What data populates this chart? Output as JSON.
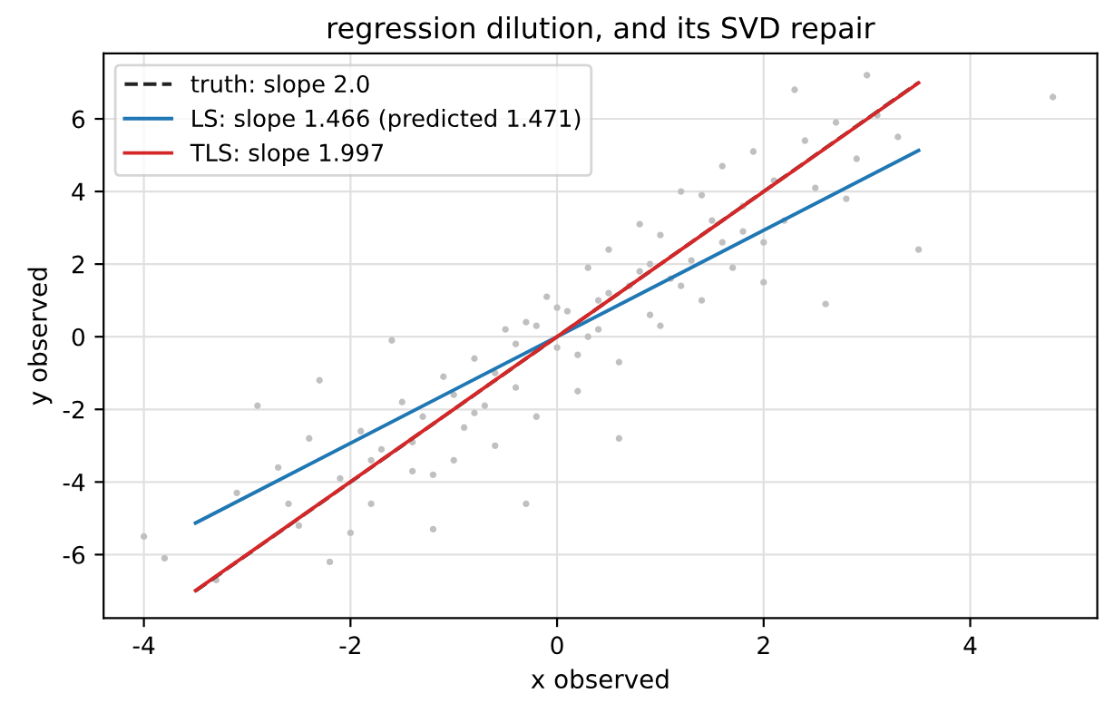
{
  "chart_data": {
    "type": "scatter",
    "title": "regression dilution, and its SVD repair",
    "xlabel": "x observed",
    "ylabel": "y observed",
    "xlim": [
      -4.39,
      5.23
    ],
    "ylim": [
      -7.75,
      7.8
    ],
    "xticks": [
      -4,
      -2,
      0,
      2,
      4
    ],
    "yticks": [
      -6,
      -4,
      -2,
      0,
      2,
      4,
      6
    ],
    "grid": true,
    "legend": "top left",
    "series": [
      {
        "color": "#c0c0c0",
        "marker": "circle",
        "x": [
          4.8,
          -4.0,
          -3.8,
          3.5,
          3.0,
          2.3,
          -2.9,
          -2.3,
          -1.6,
          2.6,
          1.4,
          0.6,
          -0.3,
          -1.2,
          -2.2,
          -3.3,
          -3.1,
          -2.7,
          -2.5,
          -2.4,
          -2.1,
          -2.0,
          -1.9,
          -1.8,
          -1.7,
          -1.5,
          -1.4,
          -1.3,
          -1.1,
          -1.0,
          -0.9,
          -0.8,
          -0.7,
          -0.6,
          -0.5,
          -0.4,
          -0.3,
          -0.2,
          -0.1,
          0.0,
          0.1,
          0.2,
          0.3,
          0.4,
          0.5,
          0.6,
          0.7,
          0.8,
          0.9,
          1.0,
          1.1,
          1.2,
          1.3,
          1.5,
          1.6,
          1.7,
          1.8,
          1.9,
          2.0,
          2.1,
          2.2,
          2.4,
          2.5,
          2.7,
          2.8,
          3.1,
          3.3,
          -1.0,
          -0.6,
          -0.2,
          0.2,
          0.5,
          0.9,
          1.2,
          1.6,
          -1.4,
          -0.8,
          0.0,
          0.4,
          0.8,
          1.4,
          1.8,
          -1.8,
          -1.2,
          -0.4,
          0.3,
          1.0,
          2.0,
          -2.6,
          2.9
        ],
        "values": [
          6.6,
          -5.5,
          -6.1,
          2.4,
          7.2,
          6.8,
          -1.9,
          -1.2,
          -0.1,
          0.9,
          1.0,
          -2.8,
          -4.6,
          -5.3,
          -6.2,
          -6.7,
          -4.3,
          -3.6,
          -5.2,
          -2.8,
          -3.9,
          -5.4,
          -2.6,
          -4.6,
          -3.1,
          -1.8,
          -3.7,
          -2.2,
          -1.1,
          -3.4,
          -2.5,
          -0.6,
          -1.9,
          -3.0,
          0.2,
          -1.4,
          0.4,
          -2.2,
          1.1,
          -0.3,
          0.7,
          -1.5,
          1.9,
          0.2,
          2.4,
          -0.7,
          1.4,
          3.1,
          0.6,
          2.8,
          1.6,
          4.0,
          2.1,
          3.2,
          4.7,
          1.9,
          3.6,
          5.1,
          2.6,
          4.3,
          3.2,
          5.4,
          4.1,
          5.9,
          3.8,
          6.1,
          5.5,
          -1.6,
          -1.0,
          0.3,
          -0.5,
          1.2,
          2.0,
          1.4,
          2.6,
          -2.9,
          -2.1,
          0.8,
          1.0,
          1.8,
          3.9,
          2.9,
          -3.4,
          -3.8,
          -0.2,
          0.0,
          0.3,
          1.5,
          -4.6,
          4.9
        ]
      },
      {
        "type": "line",
        "name": "truth: slope 2.0",
        "color": "#222222",
        "line_style": "dashed",
        "x": [
          -3.5,
          3.5
        ],
        "values": [
          -7.0,
          7.0
        ]
      },
      {
        "type": "line",
        "name": "LS: slope 1.466 (predicted 1.471)",
        "color": "#1f77b4",
        "line_style": "solid",
        "x": [
          -3.5,
          3.5
        ],
        "values": [
          -5.13,
          5.13
        ]
      },
      {
        "type": "line",
        "name": "TLS: slope 1.997",
        "color": "#d62728",
        "line_style": "solid",
        "x": [
          -3.5,
          3.5
        ],
        "values": [
          -6.99,
          6.99
        ]
      }
    ]
  }
}
